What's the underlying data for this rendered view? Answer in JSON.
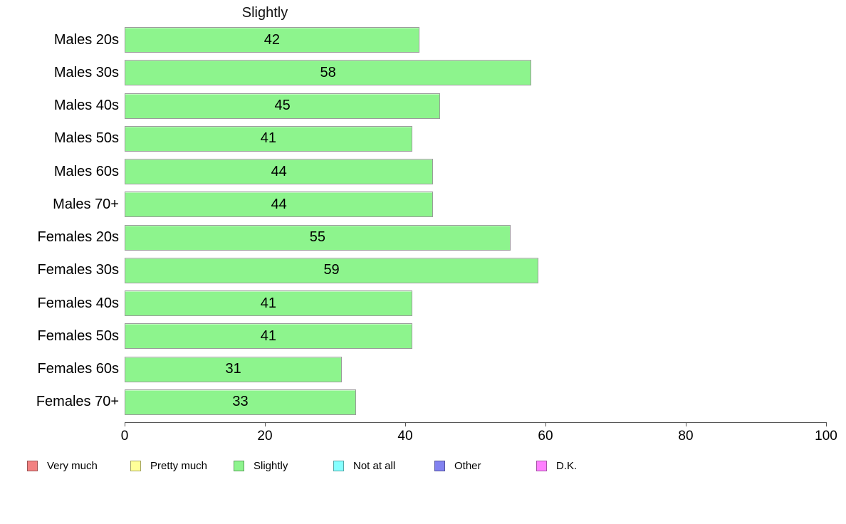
{
  "chart_data": {
    "type": "bar",
    "orientation": "horizontal",
    "title": "Slightly",
    "categories": [
      "Males 20s",
      "Males 30s",
      "Males 40s",
      "Males 50s",
      "Males 60s",
      "Males 70+",
      "Females 20s",
      "Females 30s",
      "Females 40s",
      "Females 50s",
      "Females 60s",
      "Females 70+"
    ],
    "values": [
      42,
      58,
      45,
      41,
      44,
      44,
      55,
      59,
      41,
      41,
      31,
      33
    ],
    "xlabel": "",
    "ylabel": "",
    "xlim": [
      0,
      100
    ],
    "x_ticks": [
      0,
      20,
      40,
      60,
      80,
      100
    ],
    "grid": "off",
    "bar_color": "#8df48d",
    "bar_border_color": "#9b9b9b",
    "legend_position": "bottom",
    "legend": [
      {
        "label": "Very much",
        "color": "#f28181"
      },
      {
        "label": "Pretty much",
        "color": "#ffff99"
      },
      {
        "label": "Slightly",
        "color": "#8df48d"
      },
      {
        "label": "Not at all",
        "color": "#85ffff"
      },
      {
        "label": "Other",
        "color": "#8282f0"
      },
      {
        "label": "D.K.",
        "color": "#ff80ff"
      }
    ]
  }
}
